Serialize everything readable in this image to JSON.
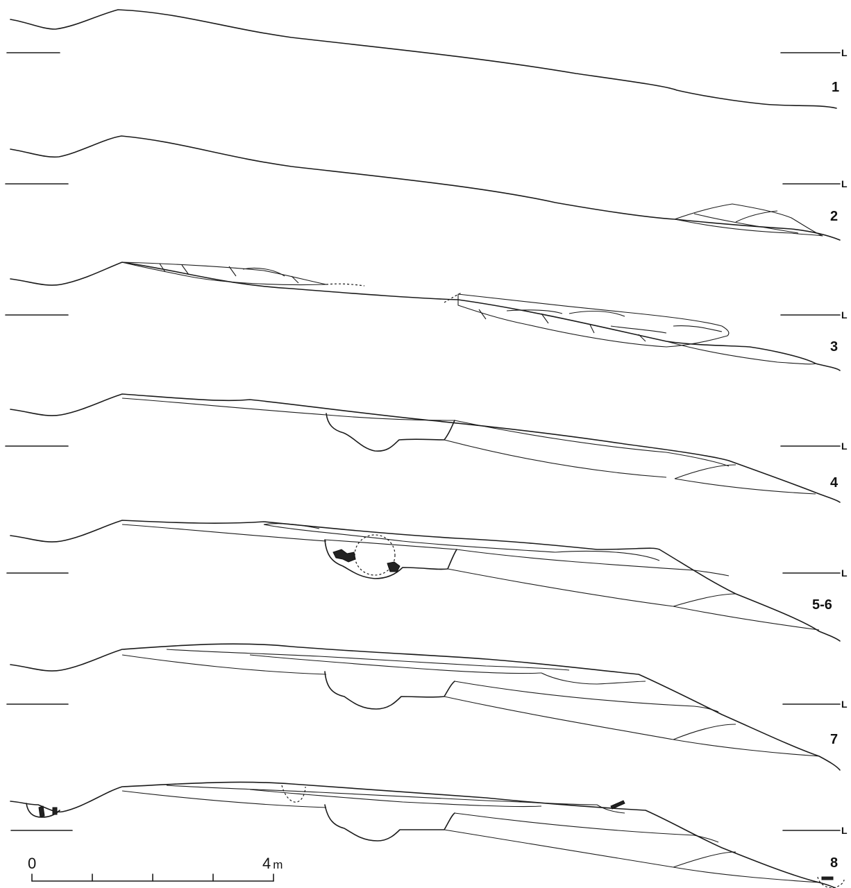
{
  "level_mark": "L",
  "sections": [
    {
      "label": "1"
    },
    {
      "label": "2"
    },
    {
      "label": "3"
    },
    {
      "label": "4"
    },
    {
      "label": "5-6"
    },
    {
      "label": "7"
    },
    {
      "label": "8"
    }
  ],
  "scale_bar": {
    "start_label": "0",
    "end_label": "4",
    "unit": "m"
  }
}
